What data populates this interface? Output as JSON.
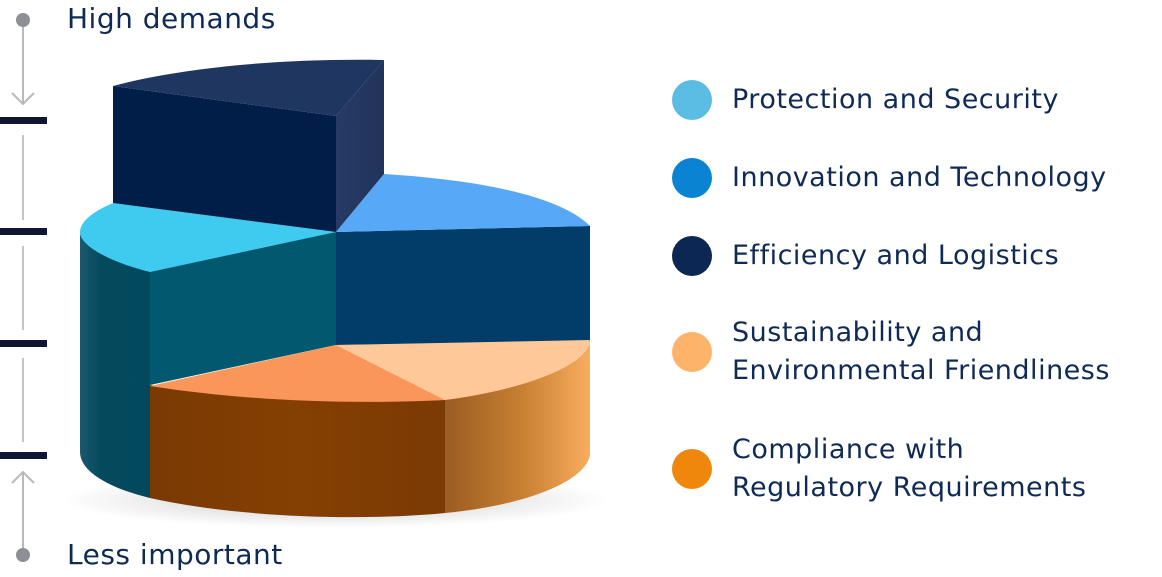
{
  "scale": {
    "top_label": "High demands",
    "bottom_label": "Less important",
    "levels": 4
  },
  "chart_data": {
    "type": "pie",
    "style": "3d-stepped",
    "legend_position": "right",
    "categories": [
      "Protection and Security",
      "Innovation and Technology",
      "Efficiency and Logistics",
      "Sustainability and Environmental Friendliness",
      "Compliance with Regulatory Requirements"
    ],
    "slices": [
      {
        "name": "Efficiency and Logistics",
        "share": 0.25,
        "level": 4,
        "color": "#0f2550"
      },
      {
        "name": "Innovation and Technology",
        "share": 0.21,
        "level": 3,
        "color": "#2e95e0"
      },
      {
        "name": "Sustainability and Environmental Friendliness",
        "share": 0.15,
        "level": 1,
        "color": "#ffb469"
      },
      {
        "name": "Compliance with Regulatory Requirements",
        "share": 0.22,
        "level": 1,
        "color": "#f2851a"
      },
      {
        "name": "Protection and Security",
        "share": 0.17,
        "level": 2,
        "color": "#3fcbef"
      }
    ]
  },
  "legend": [
    {
      "label": "Protection and Security",
      "color": "#5bbde3"
    },
    {
      "label": "Innovation and Technology",
      "color": "#0a84d2"
    },
    {
      "label": "Efficiency and Logistics",
      "color": "#0c2754"
    },
    {
      "label": "Sustainability and\nEnvironmental Friendliness",
      "color": "#fdb36a"
    },
    {
      "label": "Compliance with\nRegulatory Requirements",
      "color": "#f0870d"
    }
  ]
}
